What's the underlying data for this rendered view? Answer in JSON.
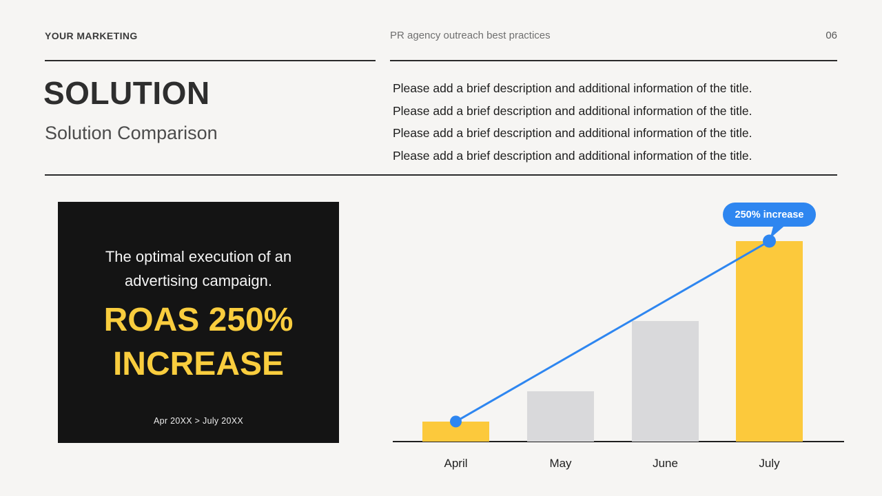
{
  "header": {
    "brand": "YOUR MARKETING",
    "title": "PR agency outreach best practices",
    "page_number": "06"
  },
  "title_section": {
    "title": "SOLUTION",
    "subtitle": "Solution Comparison",
    "description_lines": [
      "Please add a brief description and additional information of the title.",
      "Please add a brief description and additional information of the title.",
      "Please add a brief description and additional information of the title.",
      "Please add a brief description and additional information of the title."
    ]
  },
  "highlight_card": {
    "intro": "The optimal execution of an advertising campaign.",
    "headline_line1": "ROAS 250%",
    "headline_line2": "INCREASE",
    "date_range": "Apr 20XX > July 20XX"
  },
  "chart_data": {
    "type": "bar",
    "title": "",
    "xlabel": "",
    "ylabel": "",
    "categories": [
      "April",
      "May",
      "June",
      "July"
    ],
    "values": [
      10,
      25,
      60,
      100
    ],
    "value_unit": "relative height, no y-axis shown",
    "highlighted_categories": [
      "April",
      "July"
    ],
    "annotation": {
      "label": "250% increase",
      "target": "July"
    },
    "trend_line": {
      "from": "April",
      "to": "July",
      "color": "#2e86f0"
    },
    "colors": {
      "highlight_bar": "#fcc93c",
      "default_bar": "#d9d9db"
    },
    "grid": false,
    "legend": false
  },
  "colors": {
    "background": "#f6f5f3",
    "card_background": "#141414",
    "accent_yellow": "#f9cd3e",
    "accent_blue": "#2e86f0",
    "text_dark": "#262626",
    "text_gray": "#6f6f6f"
  }
}
